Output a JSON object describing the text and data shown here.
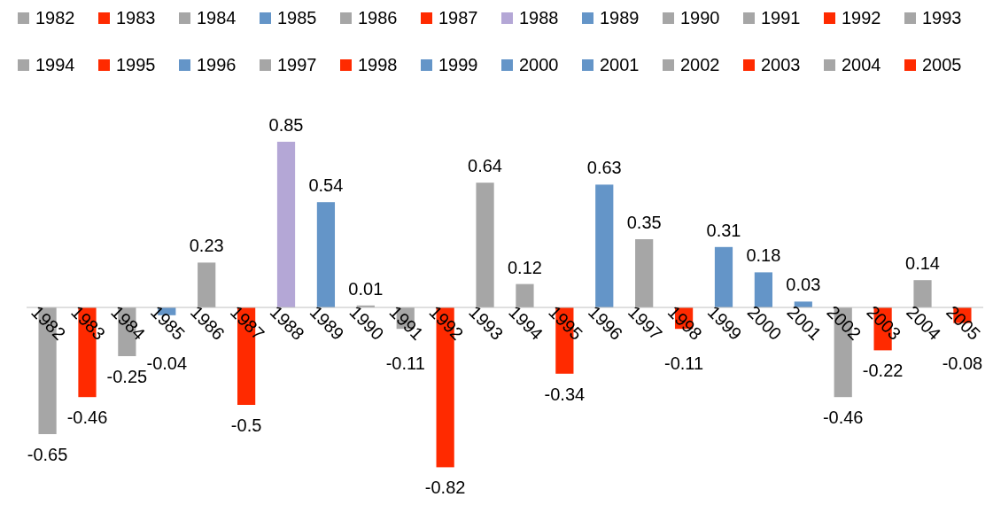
{
  "chart_data": {
    "type": "bar",
    "categories": [
      "1982",
      "1983",
      "1984",
      "1985",
      "1986",
      "1987",
      "1988",
      "1989",
      "1990",
      "1991",
      "1992",
      "1993",
      "1994",
      "1995",
      "1996",
      "1997",
      "1998",
      "1999",
      "2000",
      "2001",
      "2002",
      "2003",
      "2004",
      "2005"
    ],
    "series": [
      {
        "name": "1982",
        "color": "#a6a6a6",
        "values": [
          -0.65,
          null,
          null,
          null,
          null,
          null,
          null,
          null,
          null,
          null,
          null,
          null,
          null,
          null,
          null,
          null,
          null,
          null,
          null,
          null,
          null,
          null,
          null,
          null
        ]
      },
      {
        "name": "1983",
        "color": "#ff2a00",
        "values": [
          null,
          -0.46,
          null,
          null,
          null,
          null,
          null,
          null,
          null,
          null,
          null,
          null,
          null,
          null,
          null,
          null,
          null,
          null,
          null,
          null,
          null,
          null,
          null,
          null
        ]
      },
      {
        "name": "1984",
        "color": "#a6a6a6",
        "values": [
          null,
          null,
          -0.25,
          null,
          null,
          null,
          null,
          null,
          null,
          null,
          null,
          null,
          null,
          null,
          null,
          null,
          null,
          null,
          null,
          null,
          null,
          null,
          null,
          null
        ]
      },
      {
        "name": "1985",
        "color": "#6495c8",
        "values": [
          null,
          null,
          null,
          -0.04,
          null,
          null,
          null,
          null,
          null,
          null,
          null,
          null,
          null,
          null,
          null,
          null,
          null,
          null,
          null,
          null,
          null,
          null,
          null,
          null
        ]
      },
      {
        "name": "1986",
        "color": "#a6a6a6",
        "values": [
          null,
          null,
          null,
          null,
          0.23,
          null,
          null,
          null,
          null,
          null,
          null,
          null,
          null,
          null,
          null,
          null,
          null,
          null,
          null,
          null,
          null,
          null,
          null,
          null
        ]
      },
      {
        "name": "1987",
        "color": "#ff2a00",
        "values": [
          null,
          null,
          null,
          null,
          null,
          -0.5,
          null,
          null,
          null,
          null,
          null,
          null,
          null,
          null,
          null,
          null,
          null,
          null,
          null,
          null,
          null,
          null,
          null,
          null
        ]
      },
      {
        "name": "1988",
        "color": "#b4a7d6",
        "values": [
          null,
          null,
          null,
          null,
          null,
          null,
          0.85,
          null,
          null,
          null,
          null,
          null,
          null,
          null,
          null,
          null,
          null,
          null,
          null,
          null,
          null,
          null,
          null,
          null
        ]
      },
      {
        "name": "1989",
        "color": "#6495c8",
        "values": [
          null,
          null,
          null,
          null,
          null,
          null,
          null,
          0.54,
          null,
          null,
          null,
          null,
          null,
          null,
          null,
          null,
          null,
          null,
          null,
          null,
          null,
          null,
          null,
          null
        ]
      },
      {
        "name": "1990",
        "color": "#a6a6a6",
        "values": [
          null,
          null,
          null,
          null,
          null,
          null,
          null,
          null,
          0.01,
          null,
          null,
          null,
          null,
          null,
          null,
          null,
          null,
          null,
          null,
          null,
          null,
          null,
          null,
          null
        ]
      },
      {
        "name": "1991",
        "color": "#a6a6a6",
        "values": [
          null,
          null,
          null,
          null,
          null,
          null,
          null,
          null,
          null,
          -0.11,
          null,
          null,
          null,
          null,
          null,
          null,
          null,
          null,
          null,
          null,
          null,
          null,
          null,
          null
        ]
      },
      {
        "name": "1992",
        "color": "#ff2a00",
        "values": [
          null,
          null,
          null,
          null,
          null,
          null,
          null,
          null,
          null,
          null,
          -0.82,
          null,
          null,
          null,
          null,
          null,
          null,
          null,
          null,
          null,
          null,
          null,
          null,
          null
        ]
      },
      {
        "name": "1993",
        "color": "#a6a6a6",
        "values": [
          null,
          null,
          null,
          null,
          null,
          null,
          null,
          null,
          null,
          null,
          null,
          0.64,
          null,
          null,
          null,
          null,
          null,
          null,
          null,
          null,
          null,
          null,
          null,
          null
        ]
      },
      {
        "name": "1994",
        "color": "#a6a6a6",
        "values": [
          null,
          null,
          null,
          null,
          null,
          null,
          null,
          null,
          null,
          null,
          null,
          null,
          0.12,
          null,
          null,
          null,
          null,
          null,
          null,
          null,
          null,
          null,
          null,
          null
        ]
      },
      {
        "name": "1995",
        "color": "#ff2a00",
        "values": [
          null,
          null,
          null,
          null,
          null,
          null,
          null,
          null,
          null,
          null,
          null,
          null,
          null,
          -0.34,
          null,
          null,
          null,
          null,
          null,
          null,
          null,
          null,
          null,
          null
        ]
      },
      {
        "name": "1996",
        "color": "#6495c8",
        "values": [
          null,
          null,
          null,
          null,
          null,
          null,
          null,
          null,
          null,
          null,
          null,
          null,
          null,
          null,
          0.63,
          null,
          null,
          null,
          null,
          null,
          null,
          null,
          null,
          null
        ]
      },
      {
        "name": "1997",
        "color": "#a6a6a6",
        "values": [
          null,
          null,
          null,
          null,
          null,
          null,
          null,
          null,
          null,
          null,
          null,
          null,
          null,
          null,
          null,
          0.35,
          null,
          null,
          null,
          null,
          null,
          null,
          null,
          null
        ]
      },
      {
        "name": "1998",
        "color": "#ff2a00",
        "values": [
          null,
          null,
          null,
          null,
          null,
          null,
          null,
          null,
          null,
          null,
          null,
          null,
          null,
          null,
          null,
          null,
          -0.11,
          null,
          null,
          null,
          null,
          null,
          null,
          null
        ]
      },
      {
        "name": "1999",
        "color": "#6495c8",
        "values": [
          null,
          null,
          null,
          null,
          null,
          null,
          null,
          null,
          null,
          null,
          null,
          null,
          null,
          null,
          null,
          null,
          null,
          0.31,
          null,
          null,
          null,
          null,
          null,
          null
        ]
      },
      {
        "name": "2000",
        "color": "#6495c8",
        "values": [
          null,
          null,
          null,
          null,
          null,
          null,
          null,
          null,
          null,
          null,
          null,
          null,
          null,
          null,
          null,
          null,
          null,
          null,
          0.18,
          null,
          null,
          null,
          null,
          null
        ]
      },
      {
        "name": "2001",
        "color": "#6495c8",
        "values": [
          null,
          null,
          null,
          null,
          null,
          null,
          null,
          null,
          null,
          null,
          null,
          null,
          null,
          null,
          null,
          null,
          null,
          null,
          null,
          0.03,
          null,
          null,
          null,
          null
        ]
      },
      {
        "name": "2002",
        "color": "#a6a6a6",
        "values": [
          null,
          null,
          null,
          null,
          null,
          null,
          null,
          null,
          null,
          null,
          null,
          null,
          null,
          null,
          null,
          null,
          null,
          null,
          null,
          null,
          -0.46,
          null,
          null,
          null
        ]
      },
      {
        "name": "2003",
        "color": "#ff2a00",
        "values": [
          null,
          null,
          null,
          null,
          null,
          null,
          null,
          null,
          null,
          null,
          null,
          null,
          null,
          null,
          null,
          null,
          null,
          null,
          null,
          null,
          null,
          -0.22,
          null,
          null
        ]
      },
      {
        "name": "2004",
        "color": "#a6a6a6",
        "values": [
          null,
          null,
          null,
          null,
          null,
          null,
          null,
          null,
          null,
          null,
          null,
          null,
          null,
          null,
          null,
          null,
          null,
          null,
          null,
          null,
          null,
          null,
          0.14,
          null
        ]
      },
      {
        "name": "2005",
        "color": "#ff2a00",
        "values": [
          null,
          null,
          null,
          null,
          null,
          null,
          null,
          null,
          null,
          null,
          null,
          null,
          null,
          null,
          null,
          null,
          null,
          null,
          null,
          null,
          null,
          null,
          null,
          -0.08
        ]
      }
    ],
    "data_labels": true,
    "legend": "top"
  }
}
